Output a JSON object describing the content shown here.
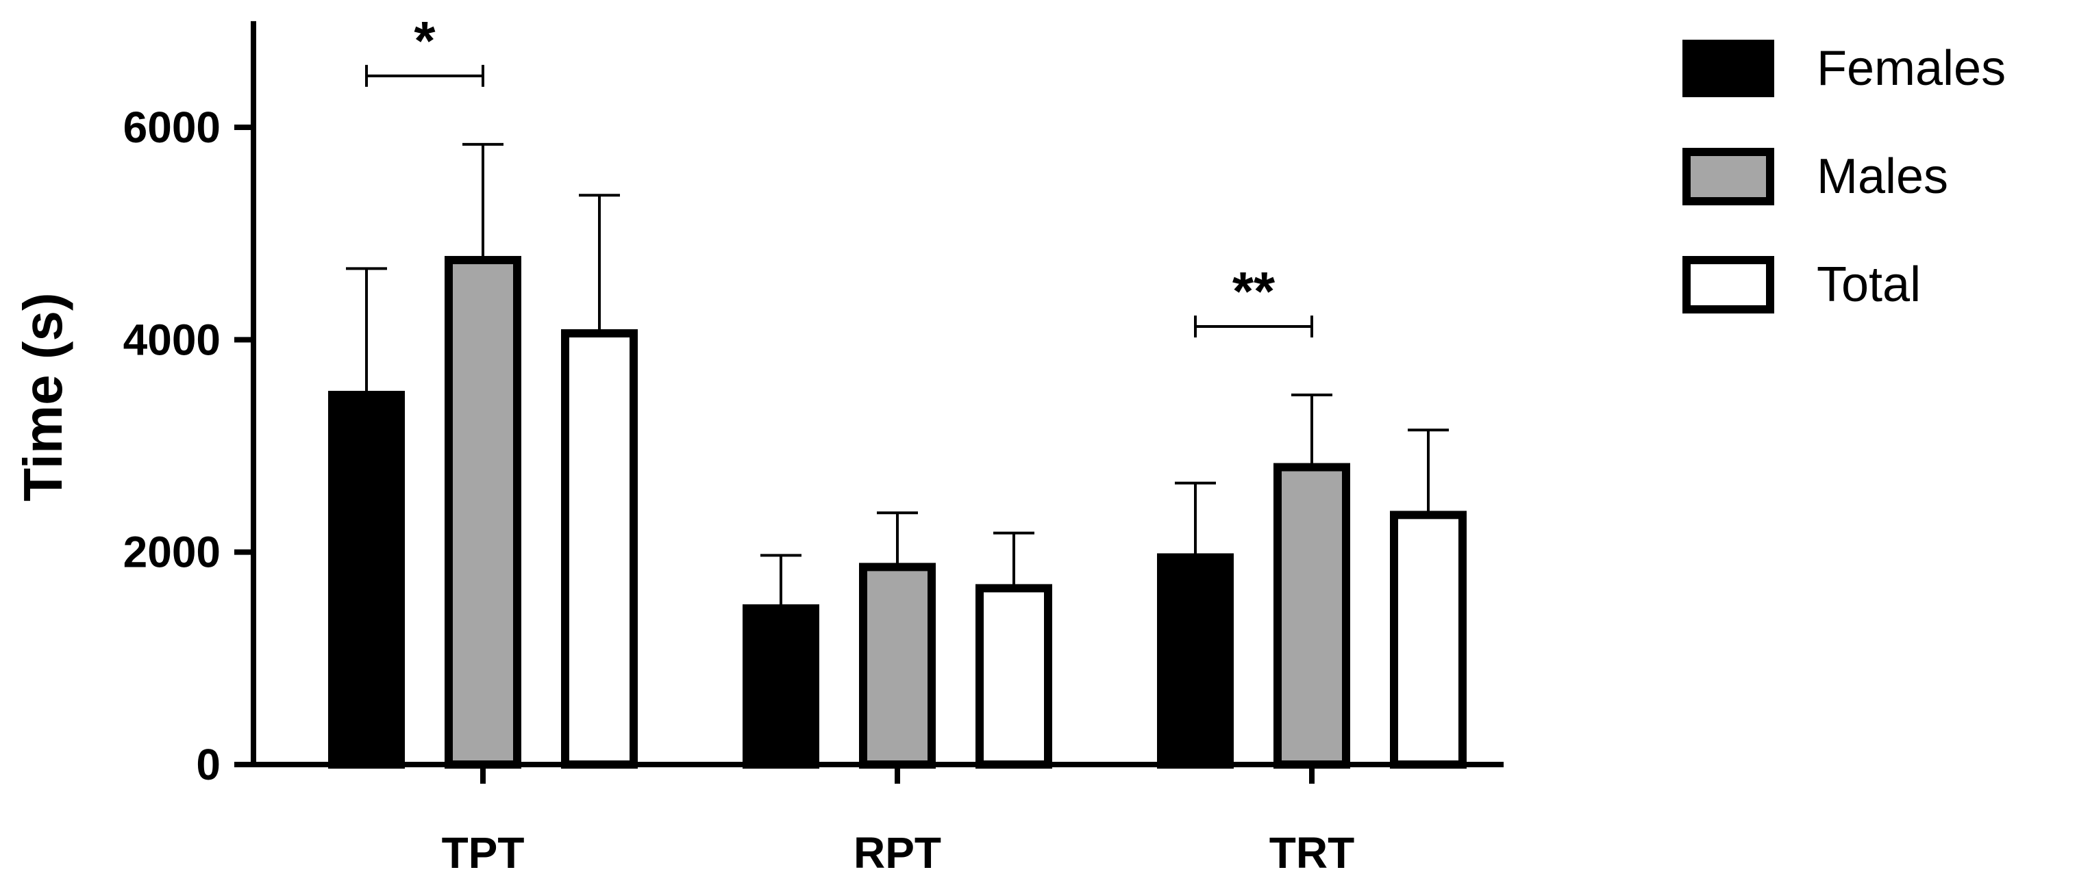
{
  "chart_data": {
    "type": "bar",
    "title": "",
    "xlabel": "",
    "ylabel": "Time (s)",
    "ylim": [
      0,
      7000
    ],
    "yticks": [
      0,
      2000,
      4000,
      6000
    ],
    "ytick_labels": [
      "0",
      "2000",
      "4000",
      "6000"
    ],
    "categories": [
      "TPT",
      "RPT",
      "TRT"
    ],
    "series": [
      {
        "name": "Females",
        "color": "#000000",
        "values": [
          3480,
          1470,
          1950
        ],
        "errors": [
          1190,
          500,
          700
        ]
      },
      {
        "name": "Males",
        "color": "#a6a6a6",
        "values": [
          4750,
          1860,
          2800
        ],
        "errors": [
          1090,
          510,
          680
        ]
      },
      {
        "name": "Total",
        "color": "#ffffff",
        "values": [
          4060,
          1660,
          2350
        ],
        "errors": [
          1300,
          520,
          800
        ]
      }
    ],
    "significance": [
      {
        "category": "TPT",
        "between": [
          "Females",
          "Males"
        ],
        "label": "*"
      },
      {
        "category": "TRT",
        "between": [
          "Females",
          "Males"
        ],
        "label": "**"
      }
    ],
    "grid": false,
    "legend": "top-right"
  }
}
